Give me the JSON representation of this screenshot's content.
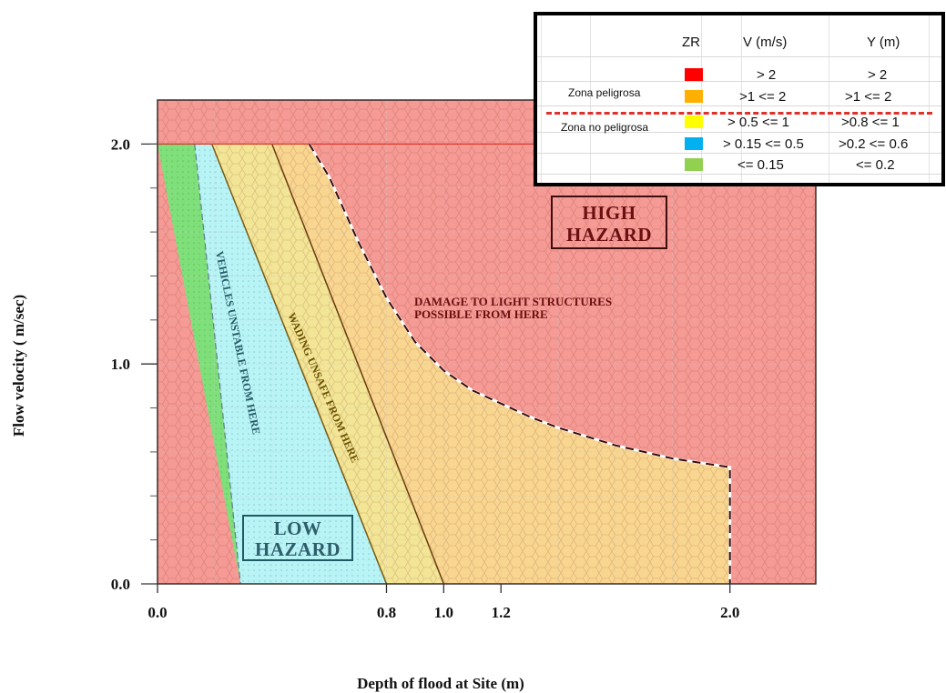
{
  "chart_data": {
    "type": "area",
    "xlabel": "Depth of flood at Site (m)",
    "ylabel": "Flow velocity ( m/sec)",
    "xlim": [
      0,
      2.3
    ],
    "ylim": [
      0,
      2.2
    ],
    "x_ticks": [
      "0.0",
      "0.8",
      "1.0",
      "1.2",
      "2.0"
    ],
    "y_ticks": [
      "0.0",
      "1.0",
      "2.0"
    ],
    "zones": [
      {
        "name": "low",
        "color": "#7fe07a",
        "boundary": [
          [
            0,
            2.0
          ],
          [
            0.13,
            2.0
          ],
          [
            0.29,
            0
          ]
        ]
      },
      {
        "name": "cyan",
        "color": "#b8f3f6",
        "boundary": [
          [
            0.13,
            2.0
          ],
          [
            0.19,
            2.0
          ],
          [
            0.8,
            0
          ],
          [
            0.29,
            0
          ]
        ]
      },
      {
        "name": "wading",
        "color": "#f2e596",
        "boundary": [
          [
            0.19,
            2.0
          ],
          [
            0.4,
            2.0
          ],
          [
            1.0,
            0
          ],
          [
            0.8,
            0
          ]
        ]
      },
      {
        "name": "moderate",
        "color": "#f8d690",
        "boundary": [
          [
            0.4,
            2.0
          ],
          [
            0.53,
            2.0
          ],
          [
            0.6,
            1.85
          ],
          [
            0.7,
            1.56
          ],
          [
            0.8,
            1.3
          ],
          [
            0.9,
            1.1
          ],
          [
            1.0,
            0.97
          ],
          [
            1.1,
            0.88
          ],
          [
            1.2,
            0.82
          ],
          [
            1.3,
            0.76
          ],
          [
            1.4,
            0.71
          ],
          [
            1.5,
            0.67
          ],
          [
            1.6,
            0.63
          ],
          [
            1.7,
            0.6
          ],
          [
            1.8,
            0.57
          ],
          [
            1.9,
            0.55
          ],
          [
            2.0,
            0.53
          ],
          [
            2.0,
            0
          ],
          [
            1.0,
            0
          ]
        ]
      }
    ],
    "dashed_boundary": [
      [
        0.53,
        2.0
      ],
      [
        0.6,
        1.85
      ],
      [
        0.7,
        1.56
      ],
      [
        0.8,
        1.3
      ],
      [
        0.9,
        1.1
      ],
      [
        1.0,
        0.97
      ],
      [
        1.1,
        0.88
      ],
      [
        1.2,
        0.82
      ],
      [
        1.3,
        0.76
      ],
      [
        1.4,
        0.71
      ],
      [
        1.5,
        0.67
      ],
      [
        1.6,
        0.63
      ],
      [
        1.7,
        0.6
      ],
      [
        1.8,
        0.57
      ],
      [
        1.9,
        0.55
      ],
      [
        2.0,
        0.53
      ],
      [
        2.0,
        0
      ]
    ],
    "annotations": {
      "high": [
        "HIGH",
        "HAZARD"
      ],
      "low": [
        "LOW",
        "HAZARD"
      ],
      "damage": [
        "DAMAGE TO LIGHT STRUCTURES",
        "POSSIBLE FROM HERE"
      ],
      "vehicles": "VEHICLES UNSTABLE FROM HERE",
      "wading": "WADING UNSAFE FROM HERE"
    },
    "colors": {
      "high": "#f59a94",
      "grid": "#c9c9c9",
      "frame": "#3a2a2a"
    }
  },
  "legend": {
    "headers": {
      "zr": "ZR",
      "v": "V (m/s)",
      "y": "Y (m)"
    },
    "zona_peligrosa": "Zona peligrosa",
    "zona_no_peligrosa": "Zona no peligrosa",
    "rows": [
      {
        "color": "#ff0000",
        "v": "> 2",
        "y": "> 2"
      },
      {
        "color": "#ffb000",
        "v": ">1 <= 2",
        "y": ">1 <= 2"
      },
      {
        "color": "#ffff00",
        "v": "> 0.5 <= 1",
        "y": ">0.8  <= 1"
      },
      {
        "color": "#00b0f0",
        "v": "> 0.15 <= 0.5",
        "y": ">0.2  <= 0.6"
      },
      {
        "color": "#92d050",
        "v": "<= 0.15",
        "y": "<= 0.2"
      }
    ]
  }
}
